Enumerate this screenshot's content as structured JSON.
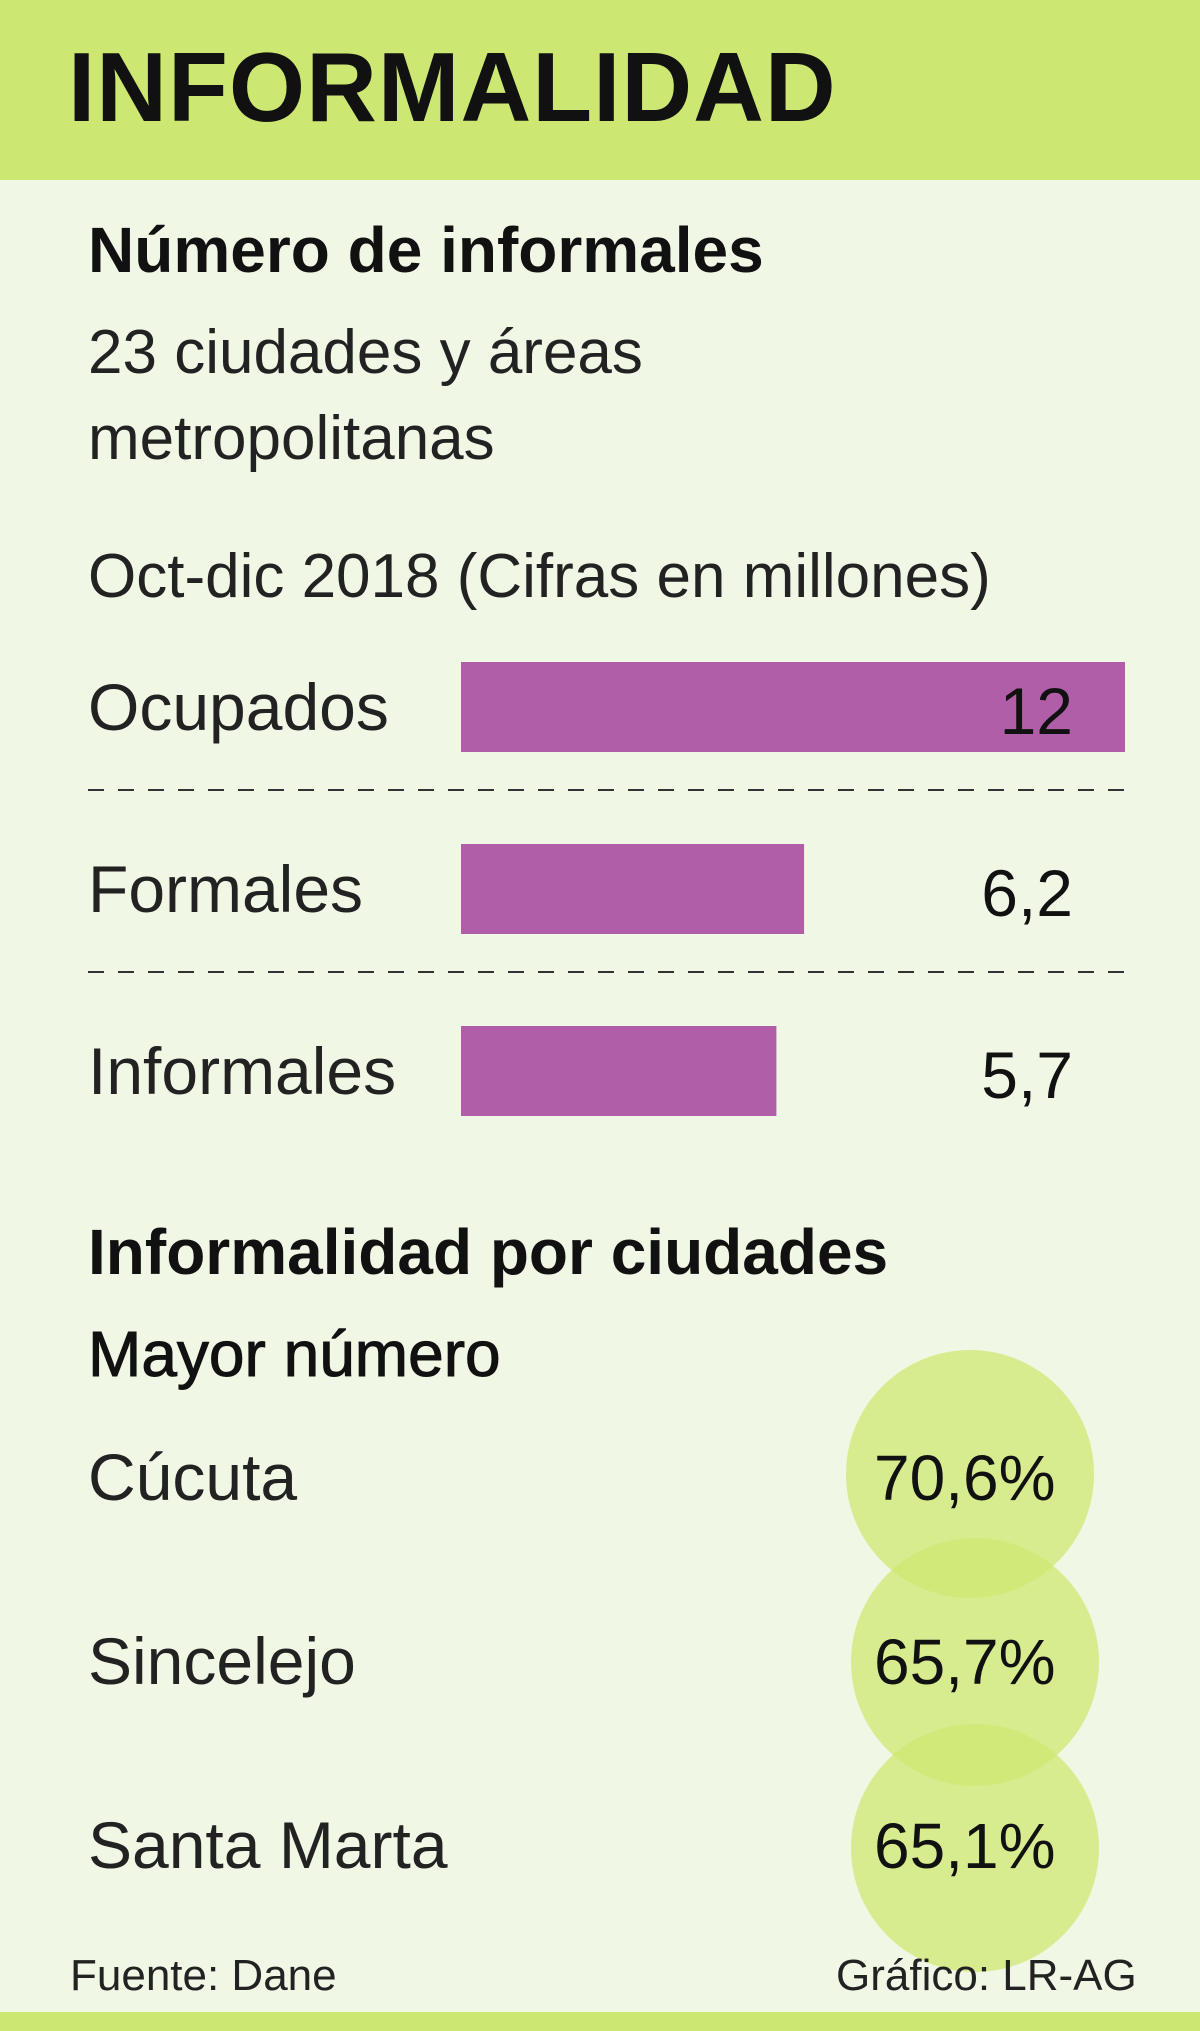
{
  "header": {
    "title": "INFORMALIDAD"
  },
  "section1": {
    "title": "Número de informales",
    "subtitle_line1": "23 ciudades y áreas",
    "subtitle_line2": "metropolitanas",
    "period": "Oct-dic 2018  (Cifras en millones)"
  },
  "chart_data": {
    "type": "bar",
    "orientation": "horizontal",
    "title": "Número de informales",
    "categories": [
      "Ocupados",
      "Formales",
      "Informales"
    ],
    "values": [
      12,
      6.2,
      5.7
    ],
    "value_labels": [
      "12",
      "6,2",
      "5,7"
    ],
    "xlim": [
      0,
      12
    ],
    "unit": "millones",
    "bar_color": "#b15ea9"
  },
  "section2": {
    "title": "Informalidad por ciudades",
    "subtitle": "Mayor número",
    "cities": [
      {
        "name": "Cúcuta",
        "value": "70,6%"
      },
      {
        "name": "Sincelejo",
        "value": "65,7%"
      },
      {
        "name": "Santa Marta",
        "value": "65,1%"
      }
    ]
  },
  "footer": {
    "source": "Fuente: Dane",
    "credit": "Gráfico: LR-AG"
  },
  "colors": {
    "header_bg": "#cde872",
    "page_bg": "#f1f7e5",
    "bar": "#b15ea9",
    "circle": "#cde872"
  }
}
